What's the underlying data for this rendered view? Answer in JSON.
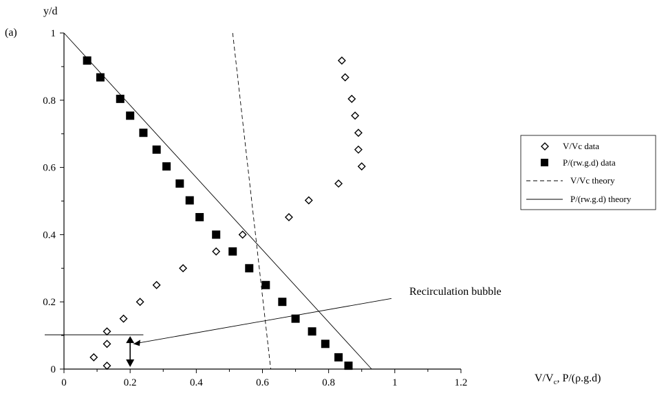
{
  "chart_data": {
    "type": "scatter",
    "panel_label": "(a)",
    "ylabel": "y/d",
    "xlabel": "V/V",
    "xlabel_sub": "c",
    "xlabel_rest": ", P/(ρ.g.d)",
    "xlim": [
      0,
      1.2
    ],
    "ylim": [
      0,
      1
    ],
    "x_ticks": [
      0,
      0.2,
      0.4,
      0.6,
      0.8,
      1,
      1.2
    ],
    "x_tick_labels": [
      "0",
      "0.2",
      "0.4",
      "0.6",
      "0.8",
      "1",
      "1.2"
    ],
    "y_ticks": [
      0,
      0.2,
      0.4,
      0.6,
      0.8,
      1
    ],
    "y_tick_labels": [
      "0",
      "0.2",
      "0.4",
      "0.6",
      "0.8",
      "1"
    ],
    "grid": false,
    "legend_position": "right",
    "series": [
      {
        "name": "V/Vc data",
        "marker": "diamond-open",
        "points": [
          [
            0.09,
            0.035
          ],
          [
            0.13,
            0.01
          ],
          [
            0.13,
            0.075
          ],
          [
            0.13,
            0.112
          ],
          [
            0.18,
            0.15
          ],
          [
            0.23,
            0.2
          ],
          [
            0.28,
            0.25
          ],
          [
            0.36,
            0.3
          ],
          [
            0.46,
            0.35
          ],
          [
            0.54,
            0.4
          ],
          [
            0.68,
            0.452
          ],
          [
            0.74,
            0.502
          ],
          [
            0.83,
            0.552
          ],
          [
            0.9,
            0.603
          ],
          [
            0.89,
            0.653
          ],
          [
            0.89,
            0.703
          ],
          [
            0.88,
            0.754
          ],
          [
            0.87,
            0.804
          ],
          [
            0.85,
            0.868
          ],
          [
            0.84,
            0.918
          ]
        ]
      },
      {
        "name": "P/(rw.g.d) data",
        "marker": "square-filled",
        "points": [
          [
            0.07,
            0.918
          ],
          [
            0.11,
            0.868
          ],
          [
            0.17,
            0.804
          ],
          [
            0.2,
            0.754
          ],
          [
            0.24,
            0.703
          ],
          [
            0.28,
            0.653
          ],
          [
            0.31,
            0.603
          ],
          [
            0.35,
            0.552
          ],
          [
            0.38,
            0.502
          ],
          [
            0.41,
            0.452
          ],
          [
            0.46,
            0.4
          ],
          [
            0.51,
            0.35
          ],
          [
            0.56,
            0.3
          ],
          [
            0.61,
            0.25
          ],
          [
            0.66,
            0.2
          ],
          [
            0.7,
            0.15
          ],
          [
            0.75,
            0.112
          ],
          [
            0.79,
            0.075
          ],
          [
            0.83,
            0.035
          ],
          [
            0.86,
            0.01
          ]
        ]
      },
      {
        "name": "V/Vc theory",
        "line_style": "dashed",
        "points": [
          [
            0.51,
            1.0
          ],
          [
            0.625,
            0.0
          ]
        ]
      },
      {
        "name": "P/(rw.g.d) theory",
        "line_style": "solid",
        "points": [
          [
            0,
            1.0
          ],
          [
            0.93,
            0.0
          ]
        ]
      }
    ],
    "annotations": [
      {
        "text": "Recirculation bubble",
        "points_to": [
          0.21,
          0.075
        ],
        "from": [
          0.99,
          0.21
        ]
      }
    ],
    "bubble_marker": {
      "y": 0.102,
      "x_range": [
        0,
        0.24
      ],
      "arrow_x": 0.2
    }
  }
}
